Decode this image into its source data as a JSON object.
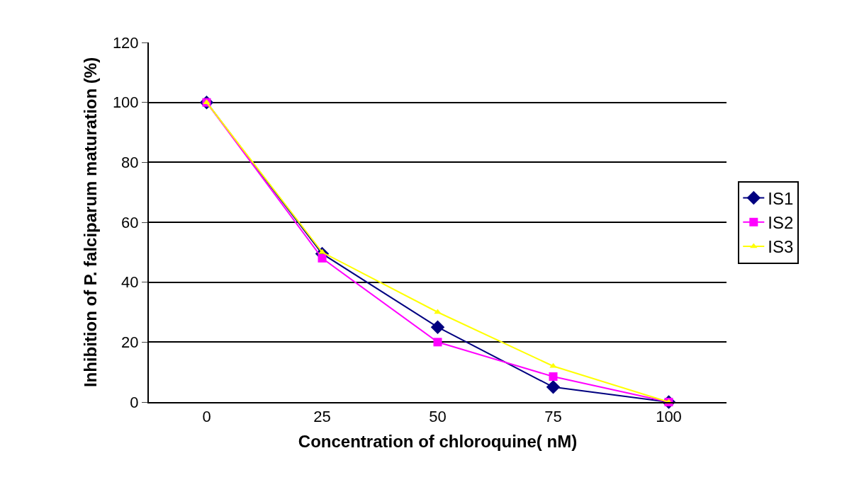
{
  "chart_data": {
    "type": "line",
    "xlabel": "Concentration of chloroquine( nM)",
    "ylabel": "Inhibition of P. falciparum maturation (%)",
    "categories": [
      "0",
      "25",
      "50",
      "75",
      "100"
    ],
    "series": [
      {
        "name": "IS1",
        "color": "#000080",
        "marker": "diamond",
        "values": [
          100,
          49.5,
          25,
          5,
          0
        ]
      },
      {
        "name": "IS2",
        "color": "#ff00ff",
        "marker": "square",
        "values": [
          100,
          48,
          20,
          8.5,
          0
        ]
      },
      {
        "name": "IS3",
        "color": "#ffff00",
        "marker": "triangle",
        "values": [
          100,
          50,
          30,
          12,
          0
        ]
      }
    ],
    "ylim": [
      0,
      120
    ],
    "yticks": [
      0,
      20,
      40,
      60,
      80,
      100,
      120
    ],
    "grid": "y",
    "legend": "right"
  }
}
